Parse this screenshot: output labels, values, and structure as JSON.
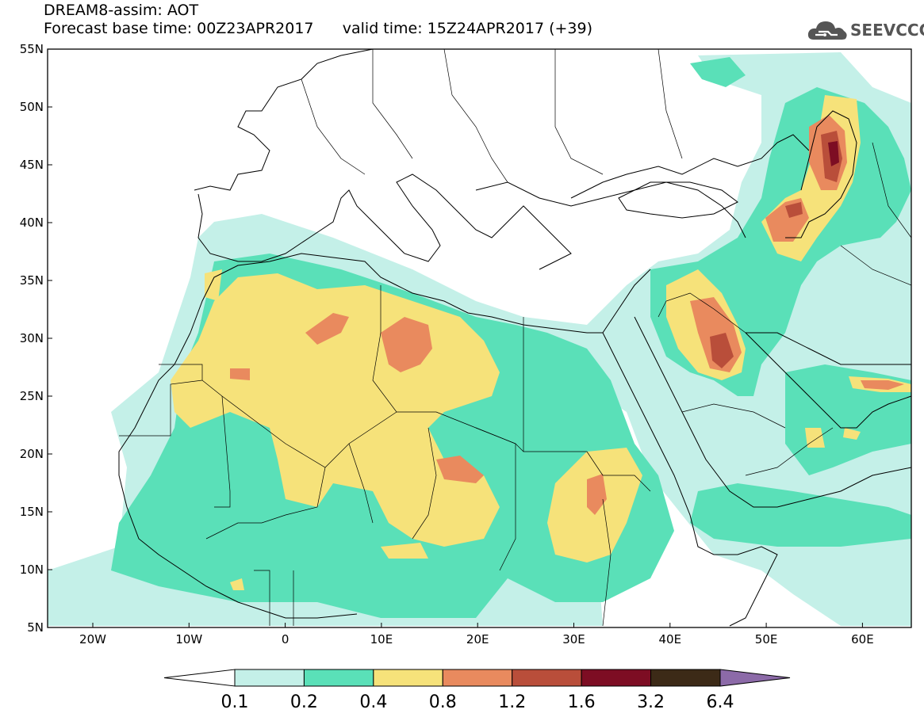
{
  "header": {
    "title": "DREAM8-assim: AOT",
    "base_time_label": "Forecast base time: 00Z23APR2017",
    "valid_time_label": "valid time: 15Z24APR2017 (+39)"
  },
  "logo": {
    "text": "SEEVCCC",
    "icon": "cloud-icon"
  },
  "map": {
    "lat_ticks": [
      "55N",
      "50N",
      "45N",
      "40N",
      "35N",
      "30N",
      "25N",
      "20N",
      "15N",
      "10N",
      "5N"
    ],
    "lon_ticks": [
      "20W",
      "10W",
      "0",
      "10E",
      "20E",
      "30E",
      "40E",
      "50E",
      "60E"
    ],
    "colors": {
      "sea": "#ffffff",
      "land": "#ffffff",
      "border": "#000000"
    }
  },
  "legend": {
    "labels": [
      "0.1",
      "0.2",
      "0.4",
      "0.8",
      "1.2",
      "1.6",
      "3.2",
      "6.4"
    ],
    "colors": [
      "#ffffff",
      "#c4f0e8",
      "#5ae0b8",
      "#f6e27a",
      "#e98a5e",
      "#b94e3a",
      "#7d0d23",
      "#3c2a17",
      "#8c6aa8"
    ]
  }
}
